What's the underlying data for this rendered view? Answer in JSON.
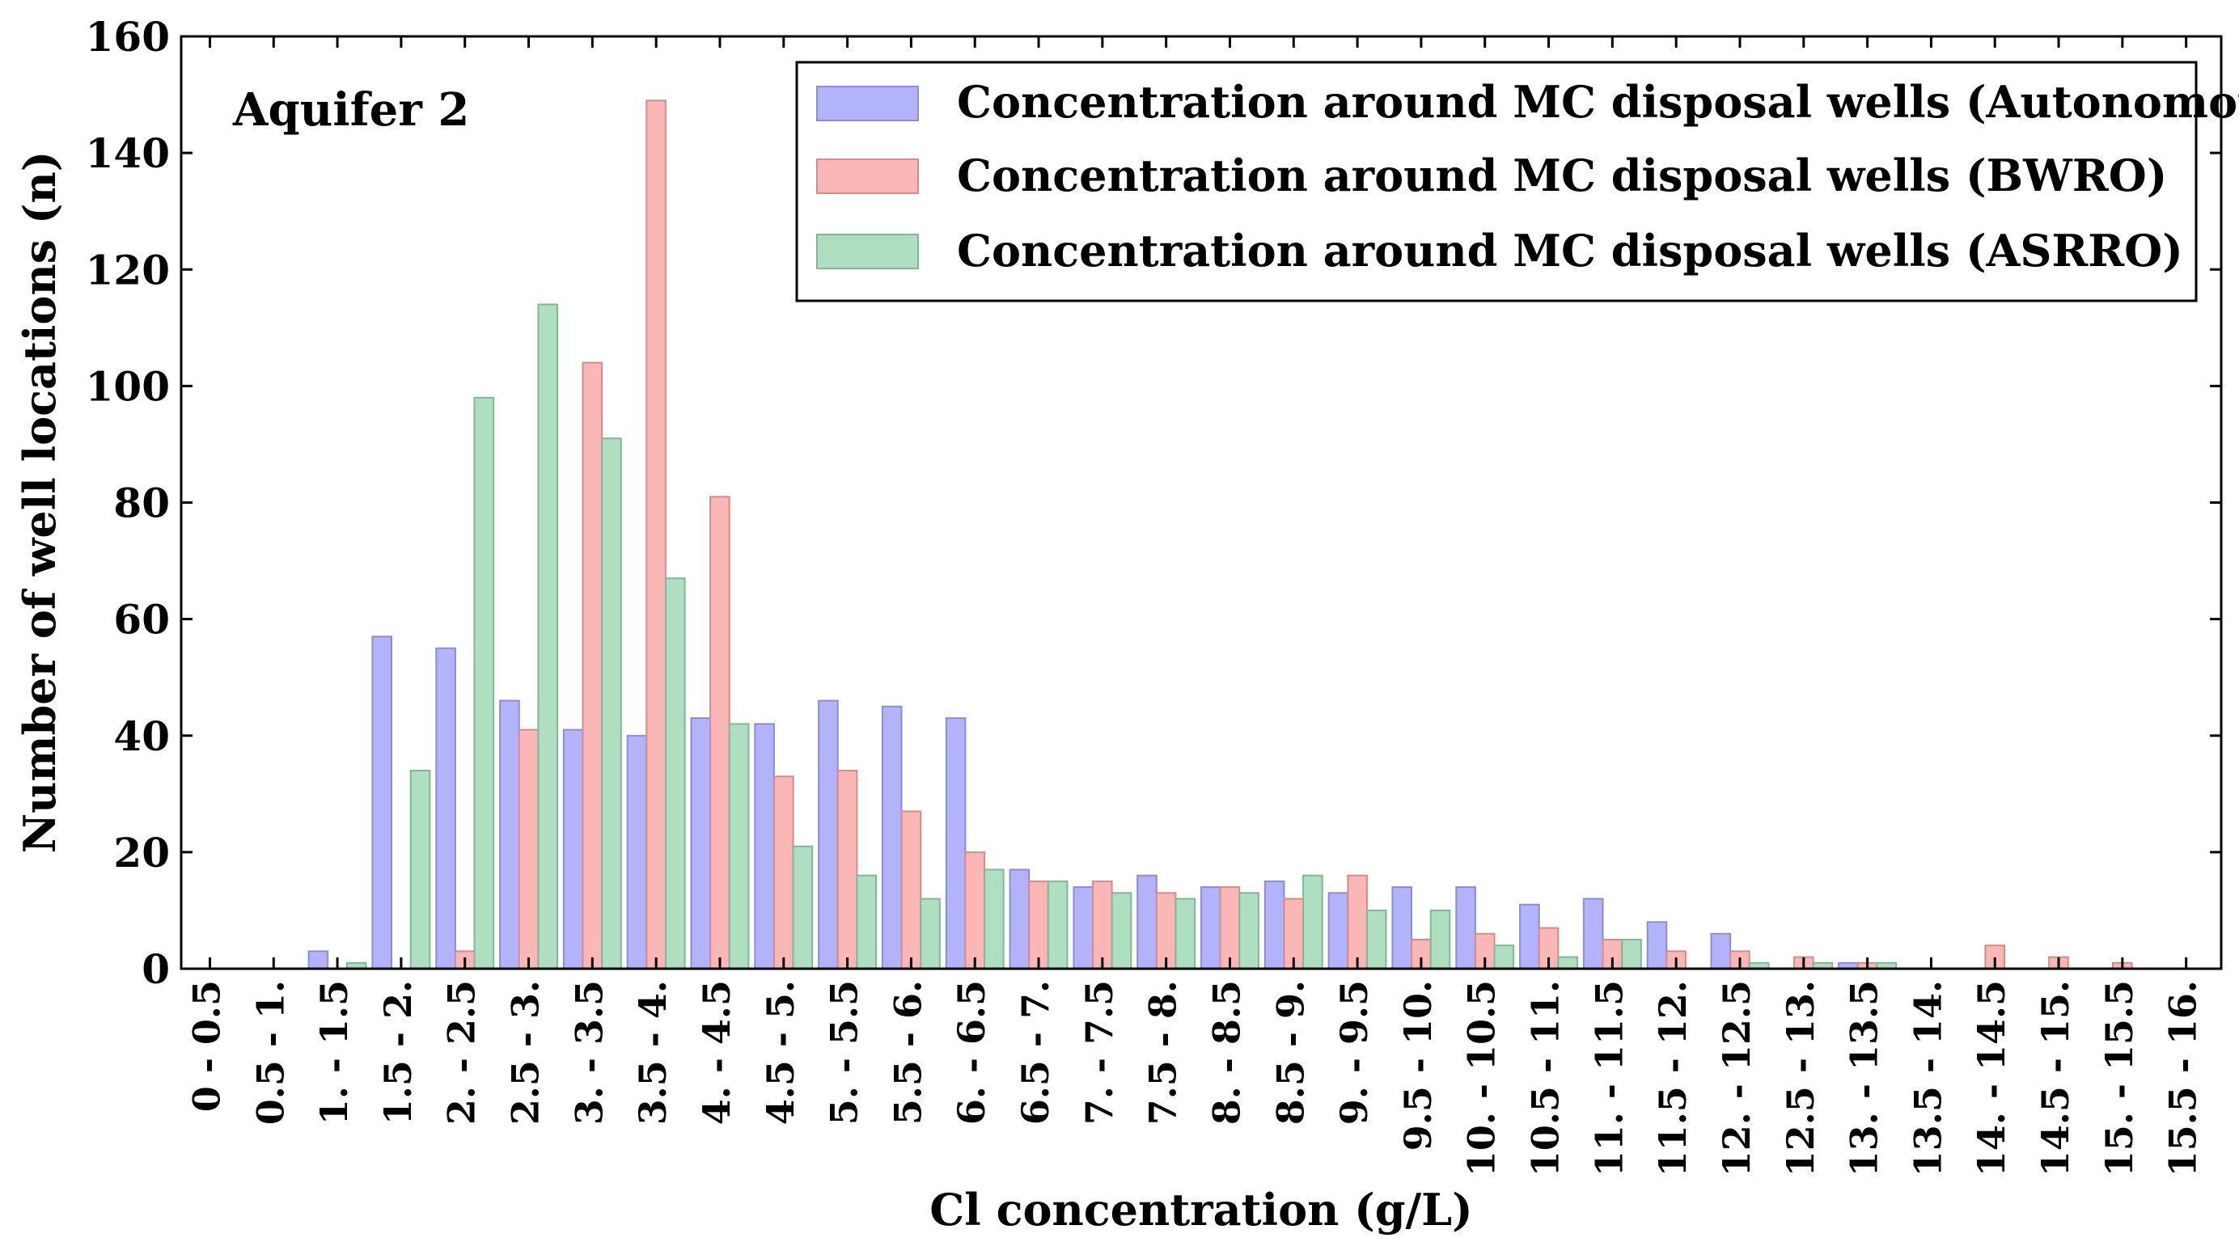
{
  "chart_data": {
    "type": "bar",
    "title": "",
    "annotation": "Aquifer 2",
    "xlabel": "Cl concentration (g/L)",
    "ylabel": "Number of well locations (n)",
    "ylim": [
      0,
      160
    ],
    "yticks": [
      0,
      20,
      40,
      60,
      80,
      100,
      120,
      140,
      160
    ],
    "categories": [
      "0 - 0.5",
      "0.5 - 1.",
      "1. - 1.5",
      "1.5 - 2.",
      "2. - 2.5",
      "2.5 - 3.",
      "3. - 3.5",
      "3.5 - 4.",
      "4. - 4.5",
      "4.5 - 5.",
      "5. - 5.5",
      "5.5 - 6.",
      "6. - 6.5",
      "6.5 - 7.",
      "7. - 7.5",
      "7.5 - 8.",
      "8. - 8.5",
      "8.5 - 9.",
      "9. - 9.5",
      "9.5 - 10.",
      "10. - 10.5",
      "10.5 - 11.",
      "11. - 11.5",
      "11.5 - 12.",
      "12. - 12.5",
      "12.5 - 13.",
      "13. - 13.5",
      "13.5 - 14.",
      "14. - 14.5",
      "14.5 - 15.",
      "15. - 15.5",
      "15.5 - 16."
    ],
    "series": [
      {
        "name": "Concentration around MC disposal wells (Autonomous)",
        "color": "#b3b3fb",
        "stroke": "#8c8cd8",
        "values": [
          0,
          0,
          3,
          57,
          55,
          46,
          41,
          40,
          43,
          42,
          46,
          45,
          43,
          17,
          14,
          16,
          14,
          15,
          13,
          14,
          14,
          11,
          12,
          8,
          6,
          0,
          1,
          0,
          0,
          0,
          0,
          0
        ]
      },
      {
        "name": "Concentration around MC disposal wells (BWRO)",
        "color": "#fbb6b6",
        "stroke": "#d88a8a",
        "values": [
          0,
          0,
          0,
          0,
          3,
          41,
          104,
          149,
          81,
          33,
          34,
          27,
          20,
          15,
          15,
          13,
          14,
          12,
          16,
          5,
          6,
          7,
          5,
          3,
          3,
          2,
          1,
          0,
          4,
          2,
          1,
          0
        ]
      },
      {
        "name": "Concentration around MC disposal wells (ASRRO)",
        "color": "#addfc0",
        "stroke": "#7fb896",
        "values": [
          0,
          0,
          1,
          34,
          98,
          114,
          91,
          67,
          42,
          21,
          16,
          12,
          17,
          15,
          13,
          12,
          13,
          16,
          10,
          10,
          4,
          2,
          5,
          0,
          1,
          1,
          1,
          0,
          0,
          0,
          0,
          0
        ]
      }
    ],
    "legend_position": "top-right"
  }
}
